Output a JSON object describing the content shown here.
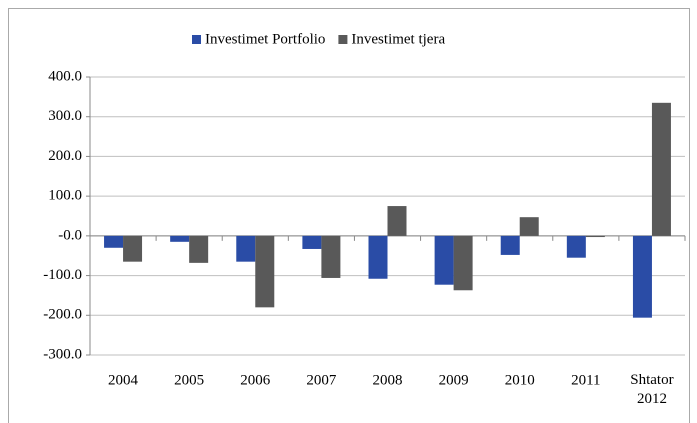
{
  "chart_data": {
    "type": "bar",
    "categories": [
      "2004",
      "2005",
      "2006",
      "2007",
      "2008",
      "2009",
      "2010",
      "2011",
      "Shtator 2012"
    ],
    "series": [
      {
        "name": "Investimet Portfolio",
        "color": "#2a4ca6",
        "values": [
          -30,
          -15,
          -65,
          -33,
          -108,
          -123,
          -48,
          -55,
          -206
        ]
      },
      {
        "name": "Investimet tjera",
        "color": "#595959",
        "values": [
          -65,
          -68,
          -180,
          -106,
          75,
          -137,
          47,
          -3,
          335
        ]
      }
    ],
    "ylim": [
      -300,
      400
    ],
    "yticks": [
      {
        "value": -300,
        "label": "-300.0"
      },
      {
        "value": -200,
        "label": "-200.0"
      },
      {
        "value": -100,
        "label": "-100.0"
      },
      {
        "value": 0,
        "label": "-0.0"
      },
      {
        "value": 100,
        "label": "100.0"
      },
      {
        "value": 200,
        "label": "200.0"
      },
      {
        "value": 300,
        "label": "300.0"
      },
      {
        "value": 400,
        "label": "400.0"
      }
    ],
    "grid": true,
    "legend": "top"
  }
}
